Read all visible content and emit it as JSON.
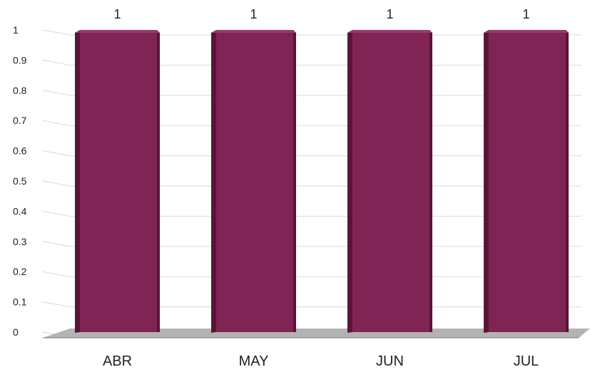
{
  "chart_data": {
    "type": "bar",
    "categories": [
      "ABR",
      "MAY",
      "JUN",
      "JUL"
    ],
    "values": [
      1,
      1,
      1,
      1
    ],
    "data_labels": [
      "1",
      "1",
      "1",
      "1"
    ],
    "ylim": [
      0,
      1
    ],
    "yticks": [
      "0",
      "0.1",
      "0.2",
      "0.3",
      "0.4",
      "0.5",
      "0.6",
      "0.7",
      "0.8",
      "0.9",
      "1"
    ],
    "grid": true,
    "three_d": true,
    "colors": {
      "bar_front": "#7f2455",
      "bar_side": "#5a1438",
      "bar_top": "#9a3a6c",
      "floor": "#b3b3b3",
      "grid": "#d9d9d9"
    }
  }
}
